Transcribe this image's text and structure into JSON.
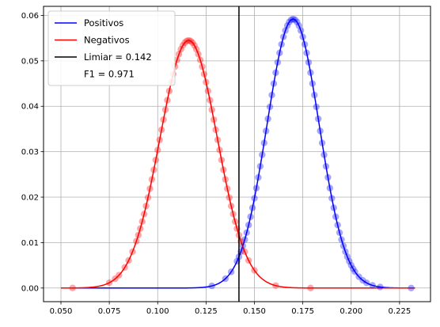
{
  "chart_data": {
    "type": "line",
    "title": "",
    "xlabel": "",
    "ylabel": "",
    "xlim": [
      0.041,
      0.241
    ],
    "ylim": [
      -0.003,
      0.062
    ],
    "x_ticks": [
      0.05,
      0.075,
      0.1,
      0.125,
      0.15,
      0.175,
      0.2,
      0.225
    ],
    "x_tick_labels": [
      "0.050",
      "0.075",
      "0.100",
      "0.125",
      "0.150",
      "0.175",
      "0.200",
      "0.225"
    ],
    "y_ticks": [
      0.0,
      0.01,
      0.02,
      0.03,
      0.04,
      0.05,
      0.06
    ],
    "y_tick_labels": [
      "0.00",
      "0.01",
      "0.02",
      "0.03",
      "0.04",
      "0.05",
      "0.06"
    ],
    "grid": true,
    "legend_position": "top-left",
    "x_range": [
      0.05,
      0.233
    ],
    "series": [
      {
        "name": "Positivos",
        "color": "#0000ff",
        "mean": 0.17,
        "std": 0.0135,
        "peak": 0.0592,
        "points_x": [
          0.128,
          0.135,
          0.138,
          0.141,
          0.142,
          0.143,
          0.144,
          0.145,
          0.146,
          0.147,
          0.148,
          0.149,
          0.15,
          0.151,
          0.152,
          0.153,
          0.154,
          0.155,
          0.156,
          0.157,
          0.158,
          0.159,
          0.16,
          0.161,
          0.162,
          0.163,
          0.164,
          0.165,
          0.166,
          0.167,
          0.168,
          0.169,
          0.17,
          0.171,
          0.172,
          0.173,
          0.174,
          0.175,
          0.176,
          0.177,
          0.178,
          0.179,
          0.18,
          0.181,
          0.182,
          0.183,
          0.184,
          0.185,
          0.186,
          0.187,
          0.188,
          0.189,
          0.19,
          0.191,
          0.192,
          0.193,
          0.194,
          0.195,
          0.196,
          0.197,
          0.198,
          0.199,
          0.2,
          0.201,
          0.202,
          0.204,
          0.206,
          0.208,
          0.211,
          0.215,
          0.231
        ]
      },
      {
        "name": "Negativos",
        "color": "#ff0000",
        "mean": 0.116,
        "std": 0.0148,
        "peak": 0.0545,
        "points_x": [
          0.056,
          0.075,
          0.078,
          0.08,
          0.083,
          0.085,
          0.087,
          0.089,
          0.09,
          0.091,
          0.092,
          0.093,
          0.094,
          0.095,
          0.096,
          0.097,
          0.098,
          0.099,
          0.1,
          0.101,
          0.102,
          0.103,
          0.104,
          0.105,
          0.106,
          0.107,
          0.108,
          0.109,
          0.11,
          0.111,
          0.112,
          0.113,
          0.114,
          0.115,
          0.116,
          0.117,
          0.118,
          0.119,
          0.12,
          0.121,
          0.122,
          0.123,
          0.124,
          0.125,
          0.126,
          0.127,
          0.128,
          0.129,
          0.13,
          0.131,
          0.132,
          0.133,
          0.134,
          0.135,
          0.136,
          0.137,
          0.138,
          0.139,
          0.14,
          0.141,
          0.142,
          0.143,
          0.145,
          0.147,
          0.15,
          0.161,
          0.179
        ]
      }
    ],
    "threshold": {
      "label": "Limiar = 0.142",
      "value": 0.142,
      "color": "#000000"
    },
    "legend_entries": [
      {
        "label": "Positivos",
        "color": "#0000ff",
        "marker": "line"
      },
      {
        "label": "Negativos",
        "color": "#ff0000",
        "marker": "line"
      },
      {
        "label": "Limiar = 0.142",
        "color": "#000000",
        "marker": "line"
      },
      {
        "label": "F1 = 0.971",
        "color": "#ffffff",
        "marker": "none"
      }
    ]
  }
}
